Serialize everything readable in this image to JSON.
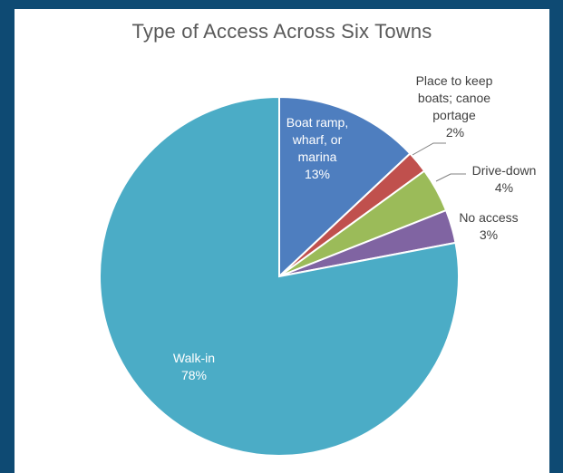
{
  "chart_data": {
    "type": "pie",
    "title": "Type of Access Across Six Towns",
    "slices": [
      {
        "label": "Boat ramp, wharf, or marina",
        "label_lines": [
          "Boat ramp,",
          "wharf, or",
          "marina"
        ],
        "value": 13,
        "value_label": "13%",
        "color": "#4e7ebf"
      },
      {
        "label": "Place to keep boats; canoe portage",
        "label_lines": [
          "Place to keep",
          "boats; canoe",
          "portage"
        ],
        "value": 2,
        "value_label": "2%",
        "color": "#c0504d"
      },
      {
        "label": "Drive-down",
        "label_lines": [
          "Drive-down"
        ],
        "value": 4,
        "value_label": "4%",
        "color": "#9bbb59"
      },
      {
        "label": "No access",
        "label_lines": [
          "No access"
        ],
        "value": 3,
        "value_label": "3%",
        "color": "#8064a2"
      },
      {
        "label": "Walk-in",
        "label_lines": [
          "Walk-in"
        ],
        "value": 78,
        "value_label": "78%",
        "color": "#4bacc6"
      }
    ]
  }
}
